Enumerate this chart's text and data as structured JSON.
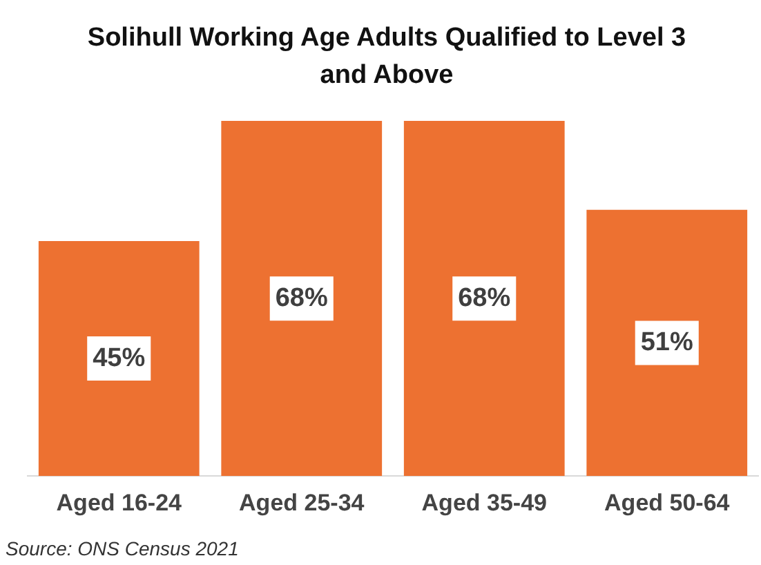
{
  "chart_data": {
    "type": "bar",
    "title": "Solihull Working Age Adults Qualified to Level 3 and Above",
    "categories": [
      "Aged 16-24",
      "Aged 25-34",
      "Aged 35-49",
      "Aged 50-64"
    ],
    "values": [
      45,
      68,
      68,
      51
    ],
    "color": "#ed7131",
    "value_labels": [
      "45%",
      "68%",
      "68%",
      "51%"
    ],
    "tick_labels": "x",
    "grid": false,
    "legend": false,
    "annotations": [
      "Source: ONS Census 2021"
    ]
  }
}
